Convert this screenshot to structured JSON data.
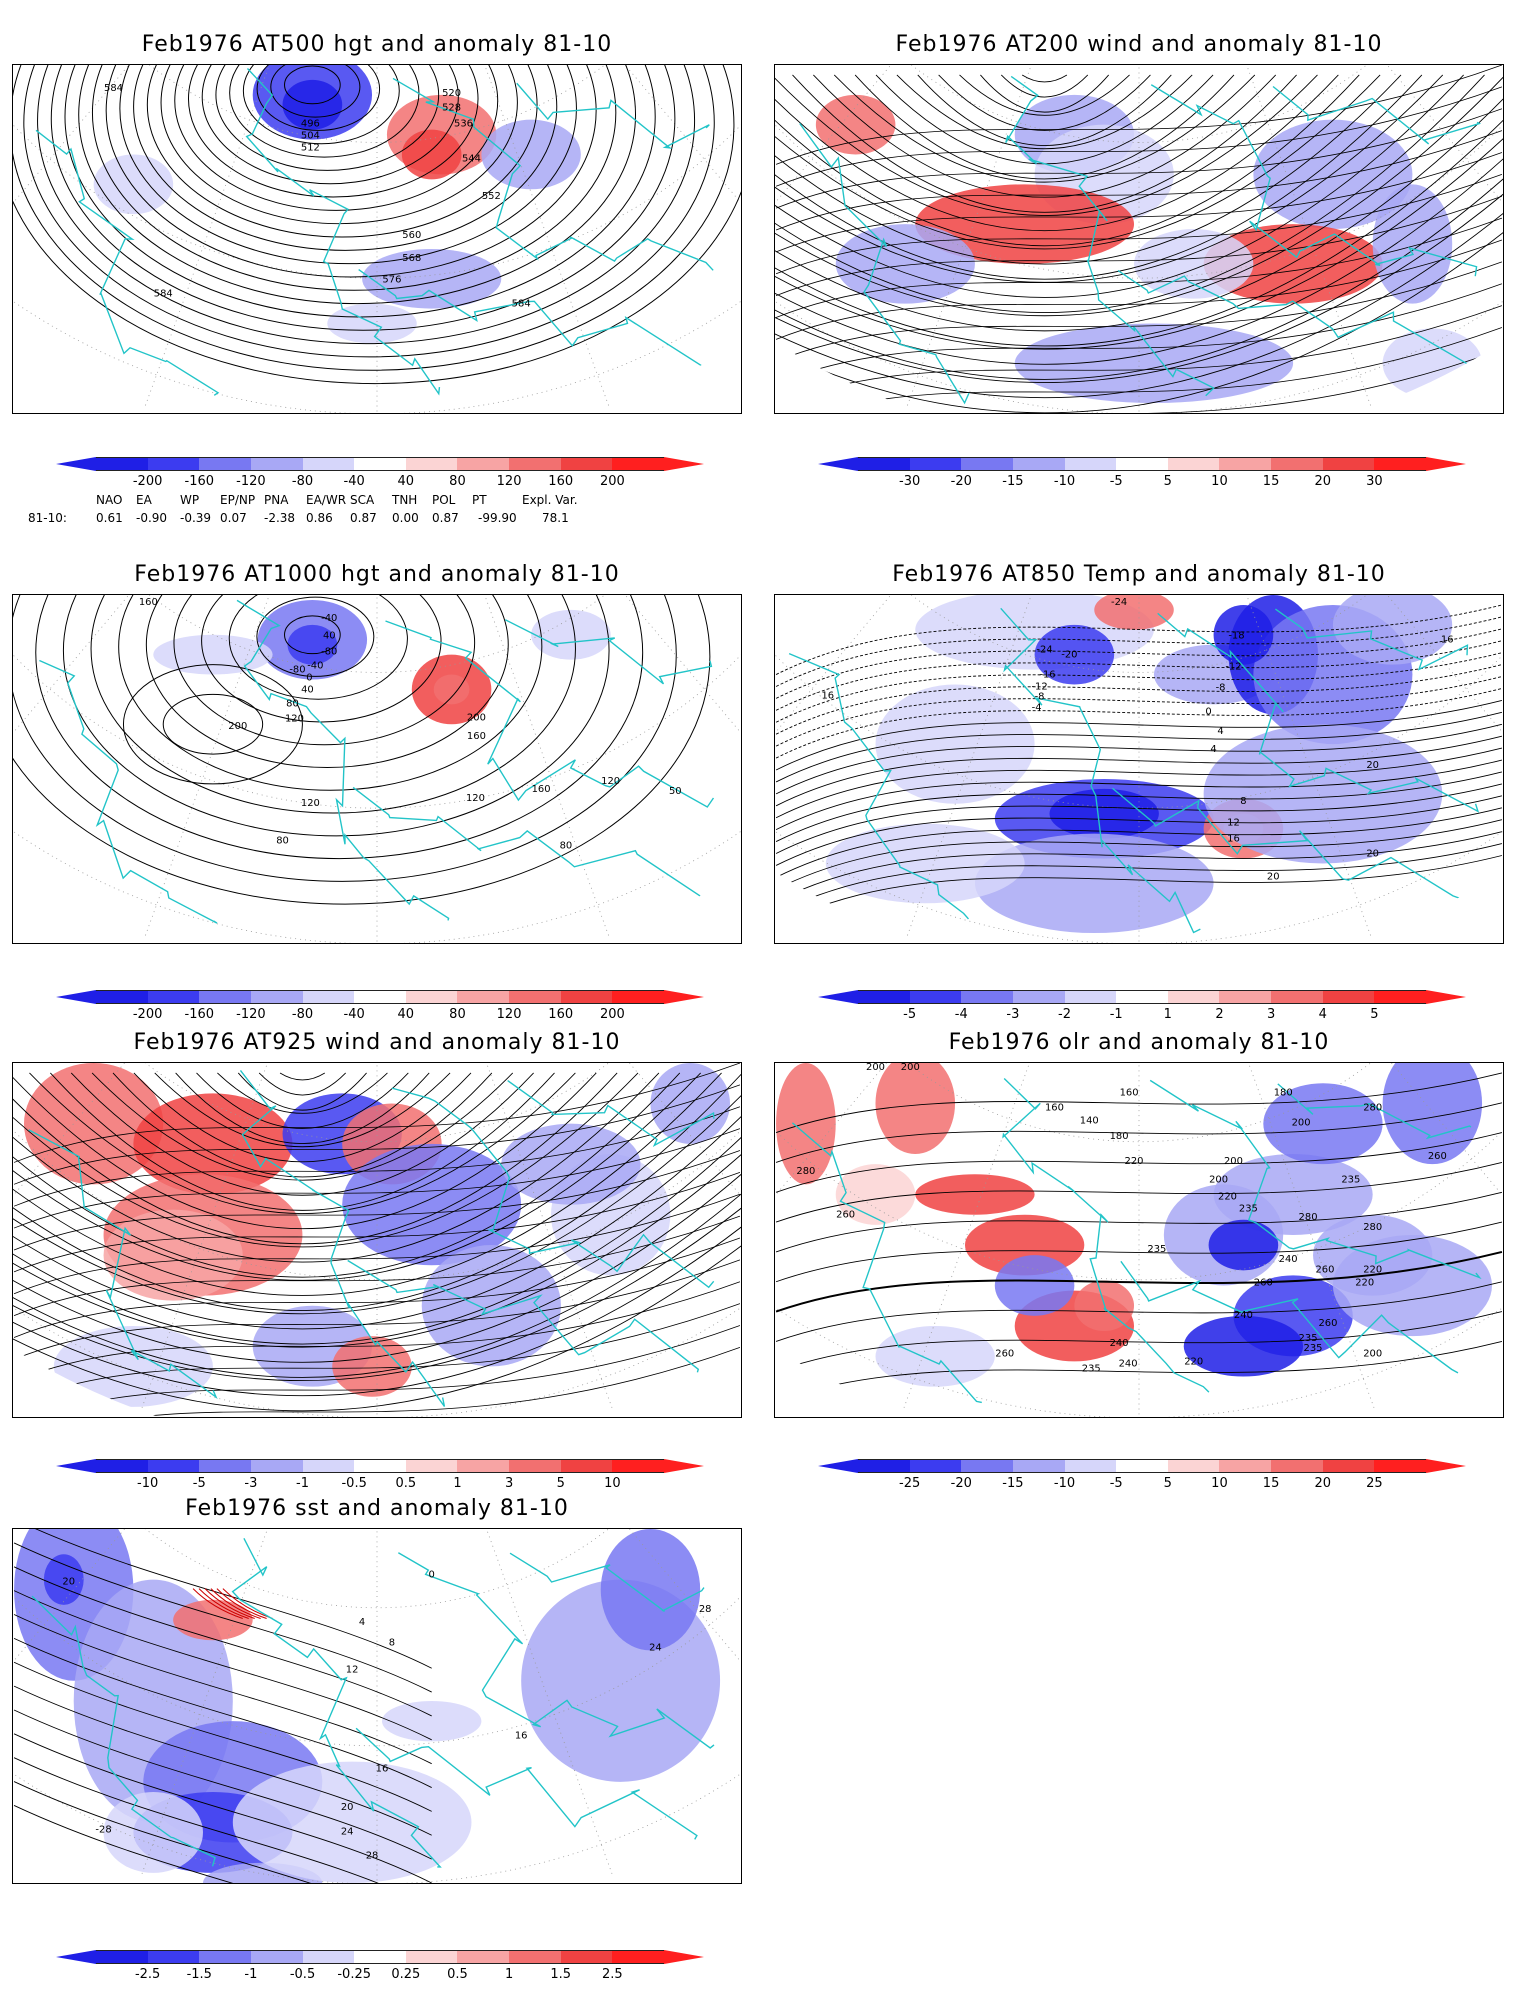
{
  "colors": {
    "coast": "#22c4c8",
    "neg": [
      "#1f1fe6",
      "#3c3cf0",
      "#7878f2",
      "#a8a8f5",
      "#d6d6fa"
    ],
    "pos": [
      "#fbd4d4",
      "#f7a4a4",
      "#f27070",
      "#f04242",
      "#ff1f1f"
    ]
  },
  "panels": [
    {
      "id": "p1",
      "title": "Feb1976 AT500 hgt and anomaly 81-10",
      "ticks": [
        "-200",
        "-160",
        "-120",
        "-80",
        "-40",
        "40",
        "80",
        "120",
        "160",
        "200"
      ],
      "labels": [
        "584",
        "520",
        "528",
        "536",
        "544",
        "552",
        "496",
        "504",
        "512",
        "560",
        "568",
        "576",
        "584",
        "584"
      ]
    },
    {
      "id": "p2",
      "title": "Feb1976 AT200 wind and anomaly 81-10",
      "ticks": [
        "-30",
        "-20",
        "-15",
        "-10",
        "-5",
        "5",
        "10",
        "15",
        "20",
        "30"
      ],
      "labels": []
    },
    {
      "id": "p3",
      "title": "Feb1976 AT1000 hgt and anomaly 81-10",
      "ticks": [
        "-200",
        "-160",
        "-120",
        "-80",
        "-40",
        "40",
        "80",
        "120",
        "160",
        "200"
      ],
      "labels": [
        "160",
        "-40",
        "40",
        "-80",
        "-40",
        "0",
        "40",
        "80",
        "120",
        "200",
        "200",
        "160",
        "120",
        "120",
        "80",
        "160",
        "120",
        "80",
        "-80",
        "50"
      ]
    },
    {
      "id": "p4",
      "title": "Feb1976 AT850 Temp and anomaly 81-10",
      "ticks": [
        "-5",
        "-4",
        "-3",
        "-2",
        "-1",
        "1",
        "2",
        "3",
        "4",
        "5"
      ],
      "labels": [
        "-24",
        "-24",
        "-20",
        "-16",
        "-12",
        "-8",
        "-4",
        "-18",
        "-12",
        "-8",
        "16",
        "16",
        "4",
        "0",
        "4",
        "8",
        "12",
        "16",
        "20",
        "20",
        "20"
      ]
    },
    {
      "id": "p5",
      "title": "Feb1976 AT925 wind and anomaly 81-10",
      "ticks": [
        "-10",
        "-5",
        "-3",
        "-1",
        "-0.5",
        "0.5",
        "1",
        "3",
        "5",
        "10"
      ],
      "labels": []
    },
    {
      "id": "p6",
      "title": "Feb1976 olr and anomaly 81-10",
      "ticks": [
        "-25",
        "-20",
        "-15",
        "-10",
        "-5",
        "5",
        "10",
        "15",
        "20",
        "25"
      ],
      "labels": [
        "200",
        "200",
        "160",
        "140",
        "180",
        "160",
        "180",
        "200",
        "280",
        "260",
        "200",
        "220",
        "200",
        "220",
        "235",
        "235",
        "235",
        "280",
        "280",
        "260",
        "240",
        "260",
        "220",
        "220",
        "260",
        "240",
        "235",
        "235",
        "240",
        "240",
        "220",
        "200",
        "260",
        "235",
        "280",
        "260"
      ]
    },
    {
      "id": "p7",
      "title": "Feb1976 sst and anomaly 81-10",
      "ticks": [
        "-2.5",
        "-1.5",
        "-1",
        "-0.5",
        "-0.25",
        "0.25",
        "0.5",
        "1",
        "1.5",
        "2.5"
      ],
      "labels": [
        "20",
        "0",
        "4",
        "8",
        "12",
        "16",
        "16",
        "24",
        "28",
        "20",
        "24",
        "28",
        "-28"
      ]
    }
  ],
  "teleconnection": {
    "row_label": "81-10:",
    "headers": [
      "NAO",
      "EA",
      "WP",
      "EP/NP",
      "PNA",
      "EA/WR",
      "SCA",
      "TNH",
      "POL",
      "PT",
      "Expl. Var."
    ],
    "values": [
      "0.61",
      "-0.90",
      "-0.39",
      "0.07",
      "-2.38",
      "0.86",
      "0.87",
      "0.00",
      "0.87",
      "-99.90",
      "78.1"
    ]
  }
}
